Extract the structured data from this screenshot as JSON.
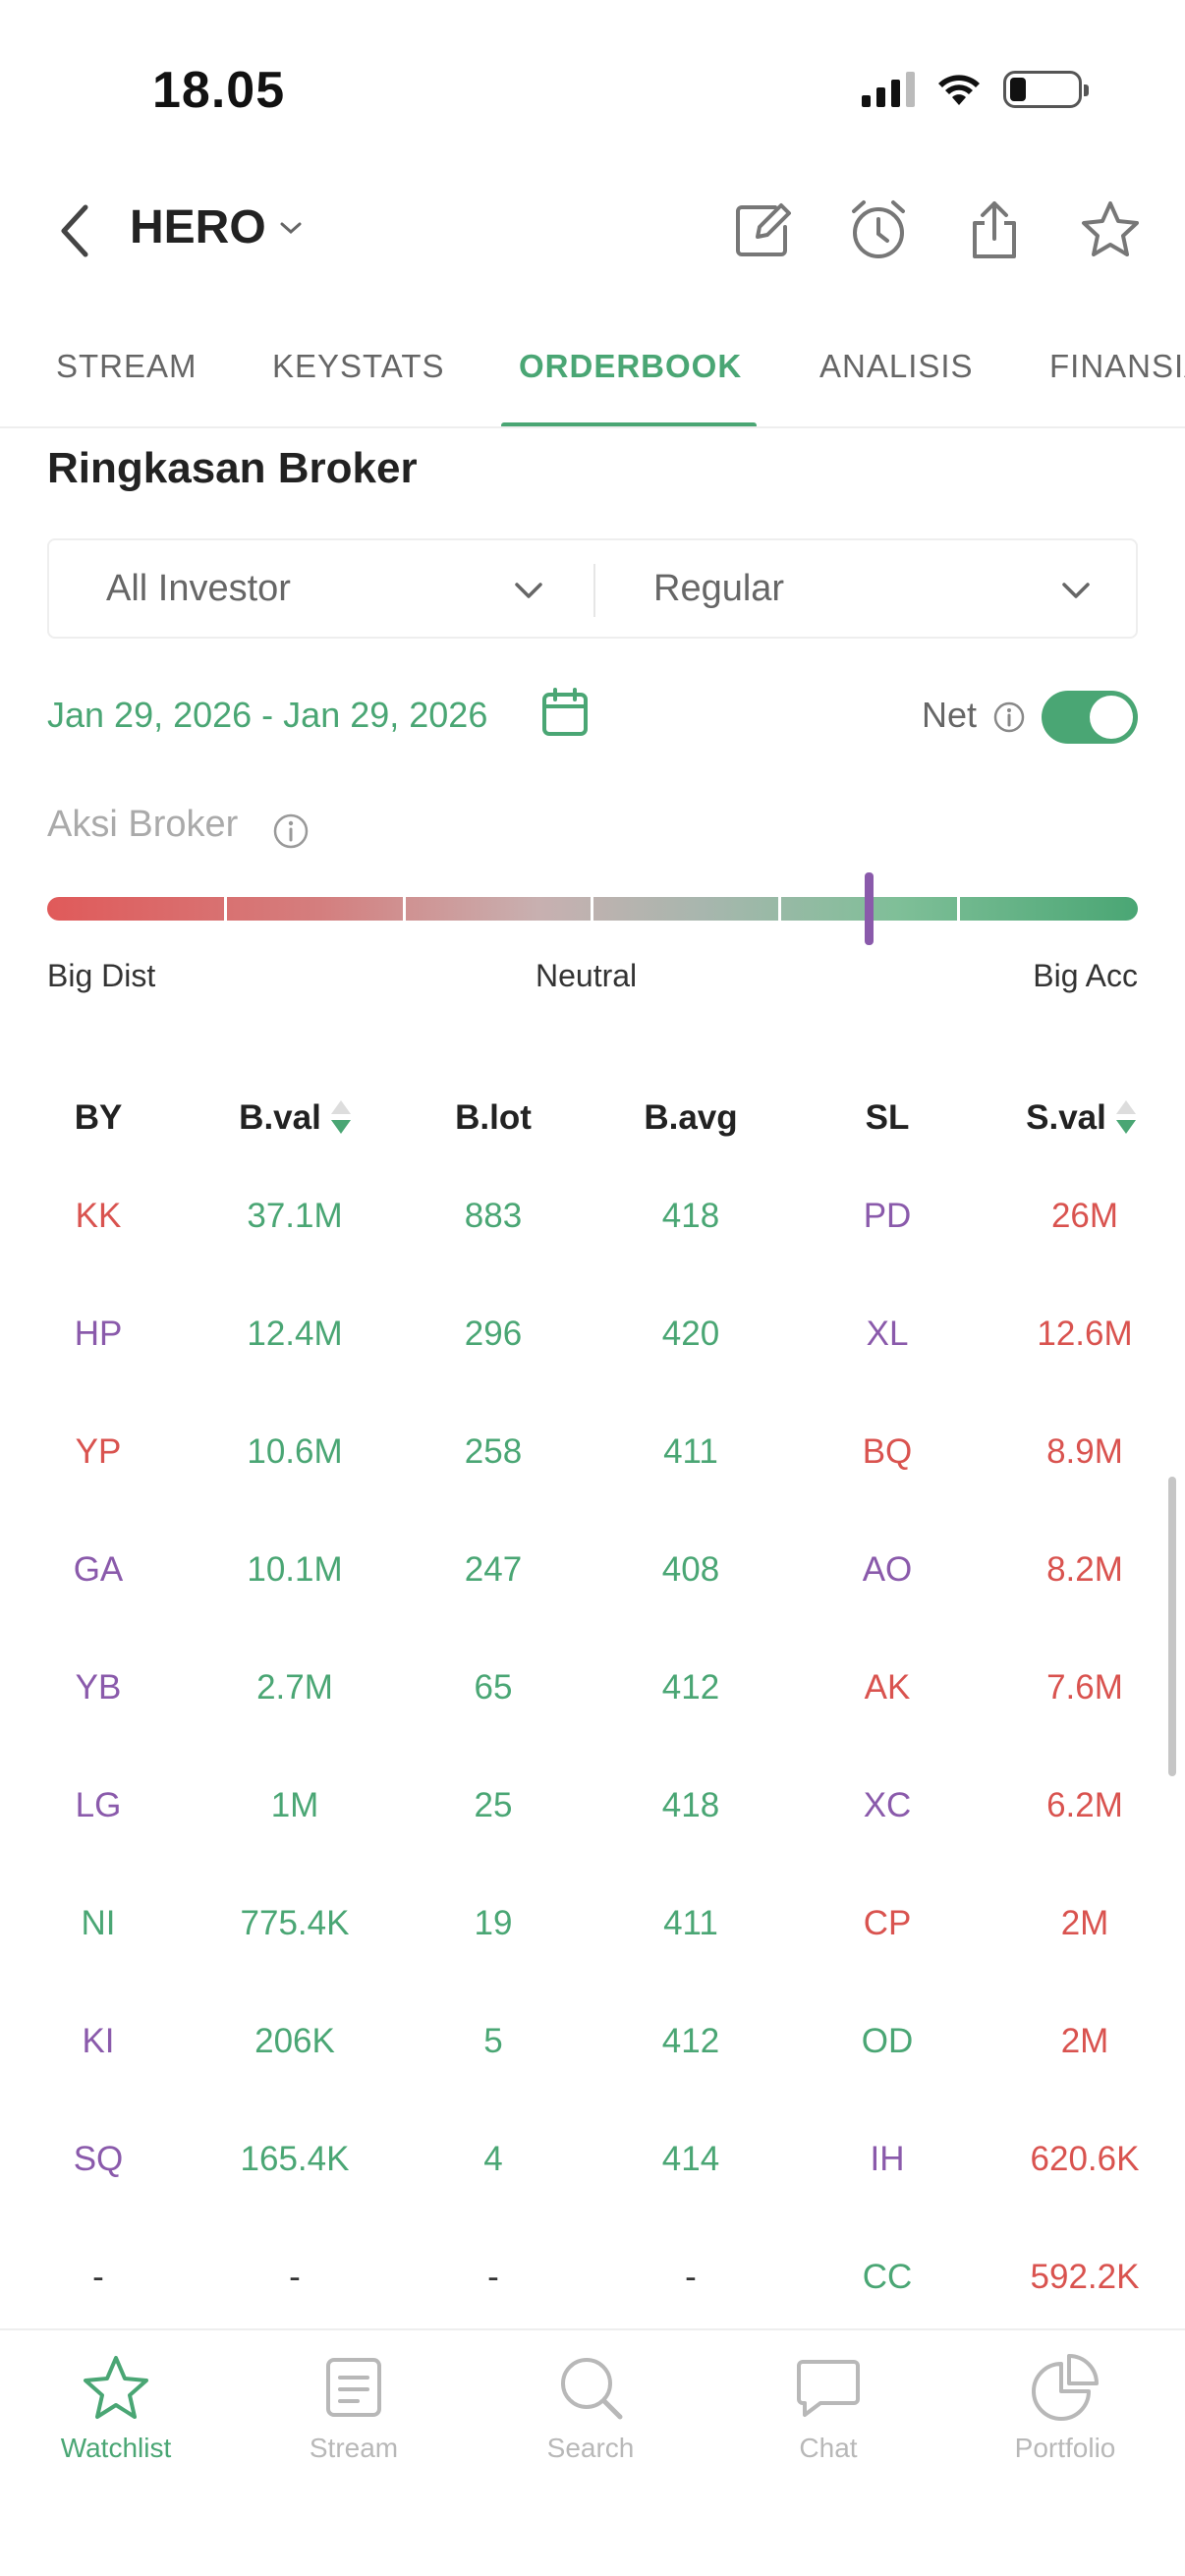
{
  "status_bar": {
    "time": "18.05",
    "signal_icon": "cellular-signal-icon",
    "wifi_icon": "wifi-icon",
    "battery_icon": "battery-icon",
    "battery_level": 0.2
  },
  "header": {
    "ticker": "HERO",
    "back_icon": "chevron-left-icon",
    "ticker_dropdown_icon": "chevron-down-icon",
    "actions": [
      "edit-icon",
      "alarm-icon",
      "share-icon",
      "star-icon"
    ]
  },
  "tabs": [
    {
      "label": "STREAM",
      "active": false
    },
    {
      "label": "KEYSTATS",
      "active": false
    },
    {
      "label": "ORDERBOOK",
      "active": true
    },
    {
      "label": "ANALISIS",
      "active": false
    },
    {
      "label": "FINANSIAL",
      "active": false
    }
  ],
  "section_title": "Ringkasan Broker",
  "filters": {
    "investor": "All Investor",
    "market": "Regular"
  },
  "date_range": "Jan 29, 2026 - Jan 29, 2026",
  "net": {
    "label": "Net",
    "enabled": true
  },
  "aksi_broker": {
    "label": "Aksi Broker",
    "level": 0.75,
    "labels": {
      "left": "Big Dist",
      "center": "Neutral",
      "right": "Big Acc"
    }
  },
  "table": {
    "headers": [
      "BY",
      "B.val",
      "B.lot",
      "B.avg",
      "SL",
      "S.val"
    ],
    "rows": [
      {
        "by": "KK",
        "bval": "37.1M",
        "blot": "883",
        "bavg": "418",
        "sl": "PD",
        "sval": "26M",
        "by_color": "red",
        "sl_color": "purple"
      },
      {
        "by": "HP",
        "bval": "12.4M",
        "blot": "296",
        "bavg": "420",
        "sl": "XL",
        "sval": "12.6M",
        "by_color": "purple",
        "sl_color": "purple"
      },
      {
        "by": "YP",
        "bval": "10.6M",
        "blot": "258",
        "bavg": "411",
        "sl": "BQ",
        "sval": "8.9M",
        "by_color": "red",
        "sl_color": "red"
      },
      {
        "by": "GA",
        "bval": "10.1M",
        "blot": "247",
        "bavg": "408",
        "sl": "AO",
        "sval": "8.2M",
        "by_color": "purple",
        "sl_color": "purple"
      },
      {
        "by": "YB",
        "bval": "2.7M",
        "blot": "65",
        "bavg": "412",
        "sl": "AK",
        "sval": "7.6M",
        "by_color": "purple",
        "sl_color": "red"
      },
      {
        "by": "LG",
        "bval": "1M",
        "blot": "25",
        "bavg": "418",
        "sl": "XC",
        "sval": "6.2M",
        "by_color": "purple",
        "sl_color": "purple"
      },
      {
        "by": "NI",
        "bval": "775.4K",
        "blot": "19",
        "bavg": "411",
        "sl": "CP",
        "sval": "2M",
        "by_color": "green",
        "sl_color": "red"
      },
      {
        "by": "KI",
        "bval": "206K",
        "blot": "5",
        "bavg": "412",
        "sl": "OD",
        "sval": "2M",
        "by_color": "purple",
        "sl_color": "green"
      },
      {
        "by": "SQ",
        "bval": "165.4K",
        "blot": "4",
        "bavg": "414",
        "sl": "IH",
        "sval": "620.6K",
        "by_color": "purple",
        "sl_color": "purple"
      },
      {
        "by": "-",
        "bval": "-",
        "blot": "-",
        "bavg": "-",
        "sl": "CC",
        "sval": "592.2K",
        "by_color": "dash",
        "sl_color": "green"
      }
    ]
  },
  "bottom_nav": [
    {
      "label": "Watchlist",
      "icon": "star-icon",
      "active": true
    },
    {
      "label": "Stream",
      "icon": "document-icon",
      "active": false
    },
    {
      "label": "Search",
      "icon": "search-icon",
      "active": false
    },
    {
      "label": "Chat",
      "icon": "chat-icon",
      "active": false
    },
    {
      "label": "Portfolio",
      "icon": "pie-chart-icon",
      "active": false
    }
  ],
  "colors": {
    "accent_green": "#4aa674",
    "red": "#d9534f",
    "purple": "#8a5aab",
    "muted": "#b8b8b8"
  }
}
